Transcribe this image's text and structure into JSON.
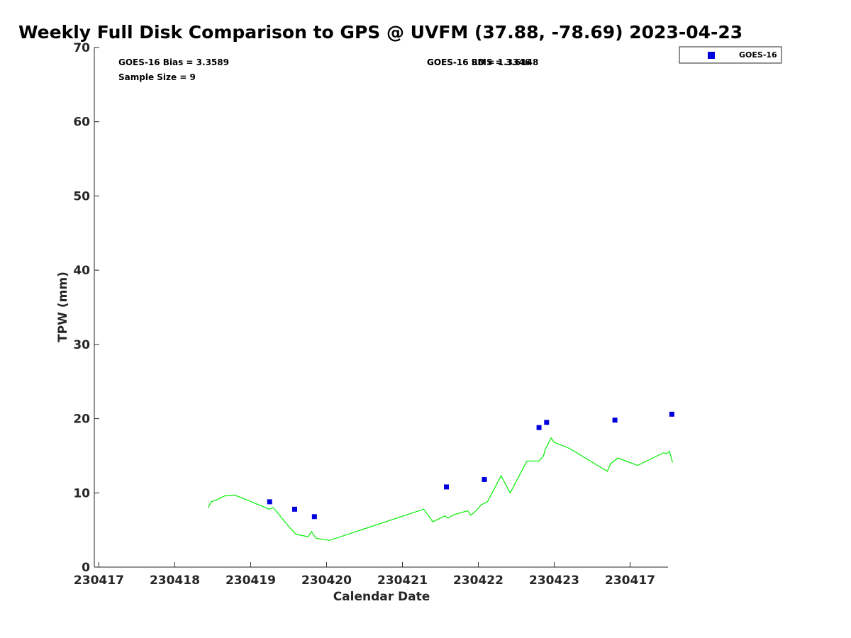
{
  "chart_data": {
    "type": "line",
    "title": "Weekly Full Disk Comparison to GPS @ UVFM (37.88, -78.69) 2023-04-23",
    "xlabel": "Calendar Date",
    "ylabel": "TPW (mm)",
    "ylim": [
      0,
      70
    ],
    "yticks": [
      0,
      10,
      20,
      30,
      40,
      50,
      60,
      70
    ],
    "xlim": [
      -0.06,
      7.5
    ],
    "x_tick_positions": [
      0,
      1,
      2,
      3,
      4,
      5,
      6,
      7
    ],
    "x_tick_labels": [
      "230417",
      "230418",
      "230419",
      "230420",
      "230421",
      "230422",
      "230423",
      "230417"
    ],
    "grid": false,
    "legend_position": "top-right",
    "legend": [
      {
        "label": "GOES-16",
        "color": "#0000dd",
        "marker": "square"
      }
    ],
    "annotations": {
      "bias": "GOES-16 Bias = 3.3589",
      "sample_size": "Sample Size = 9",
      "sd_overlap_a": "GOES-16 SD = 1.3346",
      "sd_overlap_b": "GOES-16 RMS = 3.6148"
    },
    "series": [
      {
        "name": "GPS",
        "kind": "line",
        "color": "#00ee00",
        "x": [
          1.44,
          1.48,
          1.56,
          1.66,
          1.78,
          1.84,
          2.2,
          2.24,
          2.3,
          2.5,
          2.6,
          2.76,
          2.8,
          2.86,
          3.04,
          4.28,
          4.4,
          4.56,
          4.6,
          4.66,
          4.86,
          4.9,
          4.96,
          5.04,
          5.12,
          5.3,
          5.42,
          5.64,
          5.8,
          5.86,
          5.88,
          5.96,
          6.0,
          6.2,
          6.7,
          6.74,
          6.84,
          7.1,
          7.44,
          7.48,
          7.52,
          7.56
        ],
        "y": [
          8.0,
          8.8,
          9.1,
          9.6,
          9.7,
          9.5,
          8.0,
          7.8,
          8.0,
          5.5,
          4.4,
          4.1,
          4.8,
          3.9,
          3.6,
          7.8,
          6.1,
          6.9,
          6.6,
          7.0,
          7.6,
          7.0,
          7.5,
          8.4,
          8.8,
          12.3,
          10.0,
          14.3,
          14.3,
          15.0,
          15.8,
          17.4,
          16.8,
          16.0,
          12.9,
          13.9,
          14.7,
          13.7,
          15.4,
          15.3,
          15.6,
          14.1
        ]
      },
      {
        "name": "GOES-16",
        "kind": "scatter",
        "color": "#0000dd",
        "x": [
          2.25,
          2.58,
          2.84,
          4.58,
          5.08,
          5.8,
          5.9,
          6.8,
          7.55
        ],
        "y": [
          8.8,
          7.8,
          6.8,
          10.8,
          11.8,
          18.8,
          19.5,
          19.8,
          20.6
        ]
      }
    ]
  }
}
